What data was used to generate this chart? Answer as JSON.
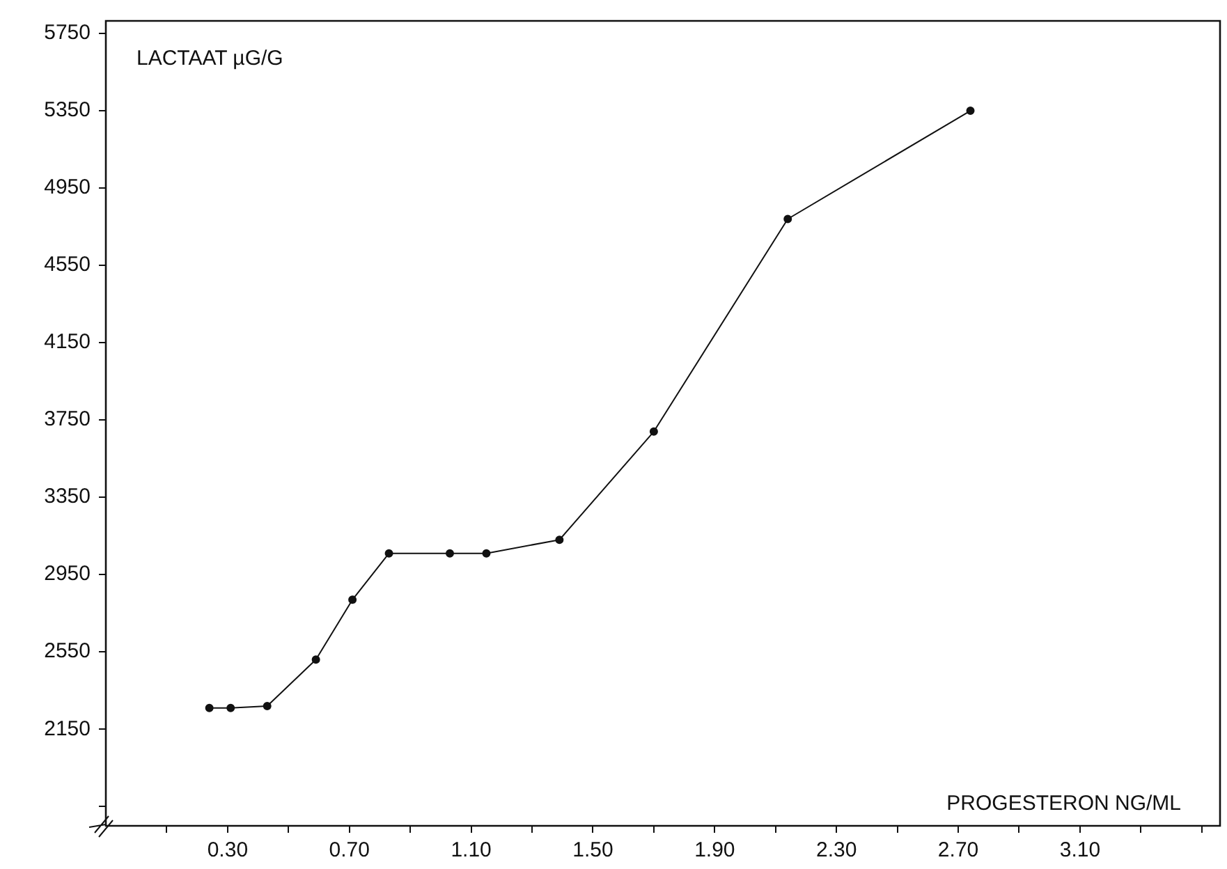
{
  "chart_data": {
    "type": "line",
    "xlabel": "PROGESTERON NG/ML",
    "ylabel": "LACTAAT µG/G",
    "x": [
      0.24,
      0.31,
      0.43,
      0.59,
      0.71,
      0.83,
      1.03,
      1.15,
      1.39,
      1.7,
      2.14,
      2.74
    ],
    "series": [
      {
        "color": "#111111",
        "values": [
          2260,
          2260,
          2270,
          2510,
          2820,
          3060,
          3060,
          3060,
          3130,
          3690,
          4790,
          5350
        ]
      }
    ],
    "xlim": [
      -0.1,
      3.56
    ],
    "ylim": [
      1650,
      5815
    ],
    "xticks": [
      {
        "value": 0.1,
        "label": null
      },
      {
        "value": 0.3,
        "label": "0.30"
      },
      {
        "value": 0.5,
        "label": null
      },
      {
        "value": 0.7,
        "label": "0.70"
      },
      {
        "value": 0.9,
        "label": null
      },
      {
        "value": 1.1,
        "label": "1.10"
      },
      {
        "value": 1.3,
        "label": null
      },
      {
        "value": 1.5,
        "label": "1.50"
      },
      {
        "value": 1.7,
        "label": null
      },
      {
        "value": 1.9,
        "label": "1.90"
      },
      {
        "value": 2.1,
        "label": null
      },
      {
        "value": 2.3,
        "label": "2.30"
      },
      {
        "value": 2.5,
        "label": null
      },
      {
        "value": 2.7,
        "label": "2.70"
      },
      {
        "value": 2.9,
        "label": null
      },
      {
        "value": 3.1,
        "label": "3.10"
      },
      {
        "value": 3.3,
        "label": null
      },
      {
        "value": 3.5,
        "label": null
      }
    ],
    "yticks": [
      {
        "value": 1750,
        "label": null
      },
      2150,
      2550,
      2950,
      3350,
      3750,
      4150,
      4550,
      4950,
      5350,
      5750
    ],
    "grid": false,
    "legend": false,
    "marker": "circle",
    "line_style": "solid"
  }
}
